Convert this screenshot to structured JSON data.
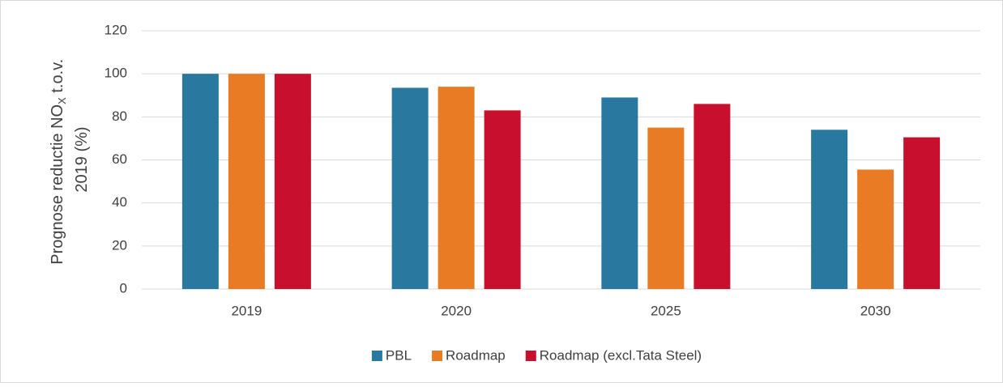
{
  "chart_data": {
    "type": "bar",
    "y_label": [
      "Prognose reductie NO",
      "X",
      " t.o.v.",
      "2019 (%)"
    ],
    "categories": [
      "2019",
      "2020",
      "2025",
      "2030"
    ],
    "series": [
      {
        "name": "PBL",
        "color": "#2878a0",
        "values": [
          100,
          93.5,
          89,
          74
        ]
      },
      {
        "name": "Roadmap",
        "color": "#e87b23",
        "values": [
          100,
          94,
          75,
          55.5
        ]
      },
      {
        "name": "Roadmap (excl.Tata Steel)",
        "color": "#c8102e",
        "values": [
          100,
          83,
          86,
          70.5
        ]
      }
    ],
    "ylim": [
      0,
      120
    ],
    "yticks": [
      0,
      20,
      40,
      60,
      80,
      100,
      120
    ],
    "grid": true,
    "legend": "bottom"
  }
}
